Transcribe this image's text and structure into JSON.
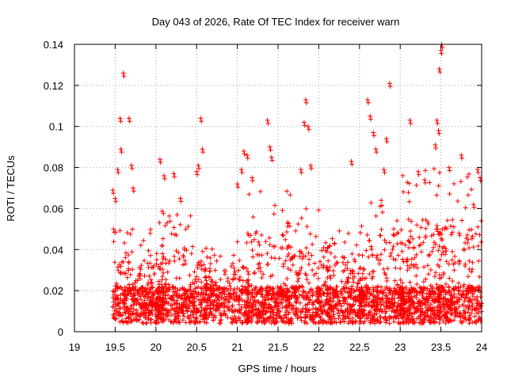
{
  "chart_data": {
    "type": "scatter",
    "title": "Day 043 of 2026, Rate Of TEC Index for receiver warn",
    "xlabel": "GPS time / hours",
    "ylabel": "ROTI / TECUs",
    "xlim": [
      19,
      24
    ],
    "ylim": [
      0,
      0.14
    ],
    "x_ticks": [
      "19",
      "19.5",
      "20",
      "20.5",
      "21",
      "21.5",
      "22",
      "22.5",
      "23",
      "23.5",
      "24"
    ],
    "y_ticks": [
      "0",
      "0.02",
      "0.04",
      "0.06",
      "0.08",
      "0.1",
      "0.12",
      "0.14"
    ],
    "grid": true,
    "marker": "+",
    "color": "#ff0000",
    "series": [
      {
        "name": "ROTI",
        "clusters": [
          {
            "x0": 19.47,
            "x1": 20.1,
            "ymax": 0.05,
            "n": 420
          },
          {
            "x0": 20.0,
            "x1": 20.62,
            "ymax": 0.06,
            "n": 380
          },
          {
            "x0": 20.6,
            "x1": 21.15,
            "ymax": 0.045,
            "n": 320
          },
          {
            "x0": 21.1,
            "x1": 21.65,
            "ymax": 0.07,
            "n": 360
          },
          {
            "x0": 21.6,
            "x1": 22.15,
            "ymax": 0.06,
            "n": 330
          },
          {
            "x0": 22.1,
            "x1": 22.55,
            "ymax": 0.055,
            "n": 280
          },
          {
            "x0": 22.5,
            "x1": 23.05,
            "ymax": 0.07,
            "n": 360
          },
          {
            "x0": 23.0,
            "x1": 23.5,
            "ymax": 0.08,
            "n": 380
          },
          {
            "x0": 23.45,
            "x1": 24.0,
            "ymax": 0.078,
            "n": 360
          }
        ],
        "peaks": [
          [
            19.47,
            0.069
          ],
          [
            19.48,
            0.05
          ],
          [
            19.5,
            0.065
          ],
          [
            19.53,
            0.079
          ],
          [
            19.56,
            0.104
          ],
          [
            19.57,
            0.089
          ],
          [
            19.6,
            0.126
          ],
          [
            19.67,
            0.104
          ],
          [
            19.7,
            0.081
          ],
          [
            19.72,
            0.07
          ],
          [
            20.05,
            0.084
          ],
          [
            20.1,
            0.076
          ],
          [
            20.22,
            0.077
          ],
          [
            20.3,
            0.065
          ],
          [
            20.5,
            0.078
          ],
          [
            20.52,
            0.081
          ],
          [
            20.55,
            0.104
          ],
          [
            20.57,
            0.089
          ],
          [
            21.0,
            0.072
          ],
          [
            21.05,
            0.079
          ],
          [
            21.08,
            0.088
          ],
          [
            21.12,
            0.086
          ],
          [
            21.18,
            0.075
          ],
          [
            21.37,
            0.103
          ],
          [
            21.4,
            0.09
          ],
          [
            21.42,
            0.085
          ],
          [
            21.78,
            0.079
          ],
          [
            21.82,
            0.102
          ],
          [
            21.84,
            0.113
          ],
          [
            21.87,
            0.1
          ],
          [
            21.9,
            0.081
          ],
          [
            22.4,
            0.083
          ],
          [
            22.6,
            0.113
          ],
          [
            22.63,
            0.105
          ],
          [
            22.67,
            0.097
          ],
          [
            22.7,
            0.089
          ],
          [
            22.8,
            0.079
          ],
          [
            22.83,
            0.094
          ],
          [
            22.87,
            0.121
          ],
          [
            23.12,
            0.103
          ],
          [
            23.22,
            0.078
          ],
          [
            23.3,
            0.074
          ],
          [
            23.43,
            0.091
          ],
          [
            23.45,
            0.103
          ],
          [
            23.47,
            0.098
          ],
          [
            23.48,
            0.128
          ],
          [
            23.5,
            0.137
          ],
          [
            23.51,
            0.14
          ],
          [
            23.6,
            0.08
          ],
          [
            23.75,
            0.086
          ],
          [
            23.9,
            0.062
          ],
          [
            23.95,
            0.079
          ],
          [
            23.98,
            0.075
          ]
        ]
      }
    ]
  }
}
